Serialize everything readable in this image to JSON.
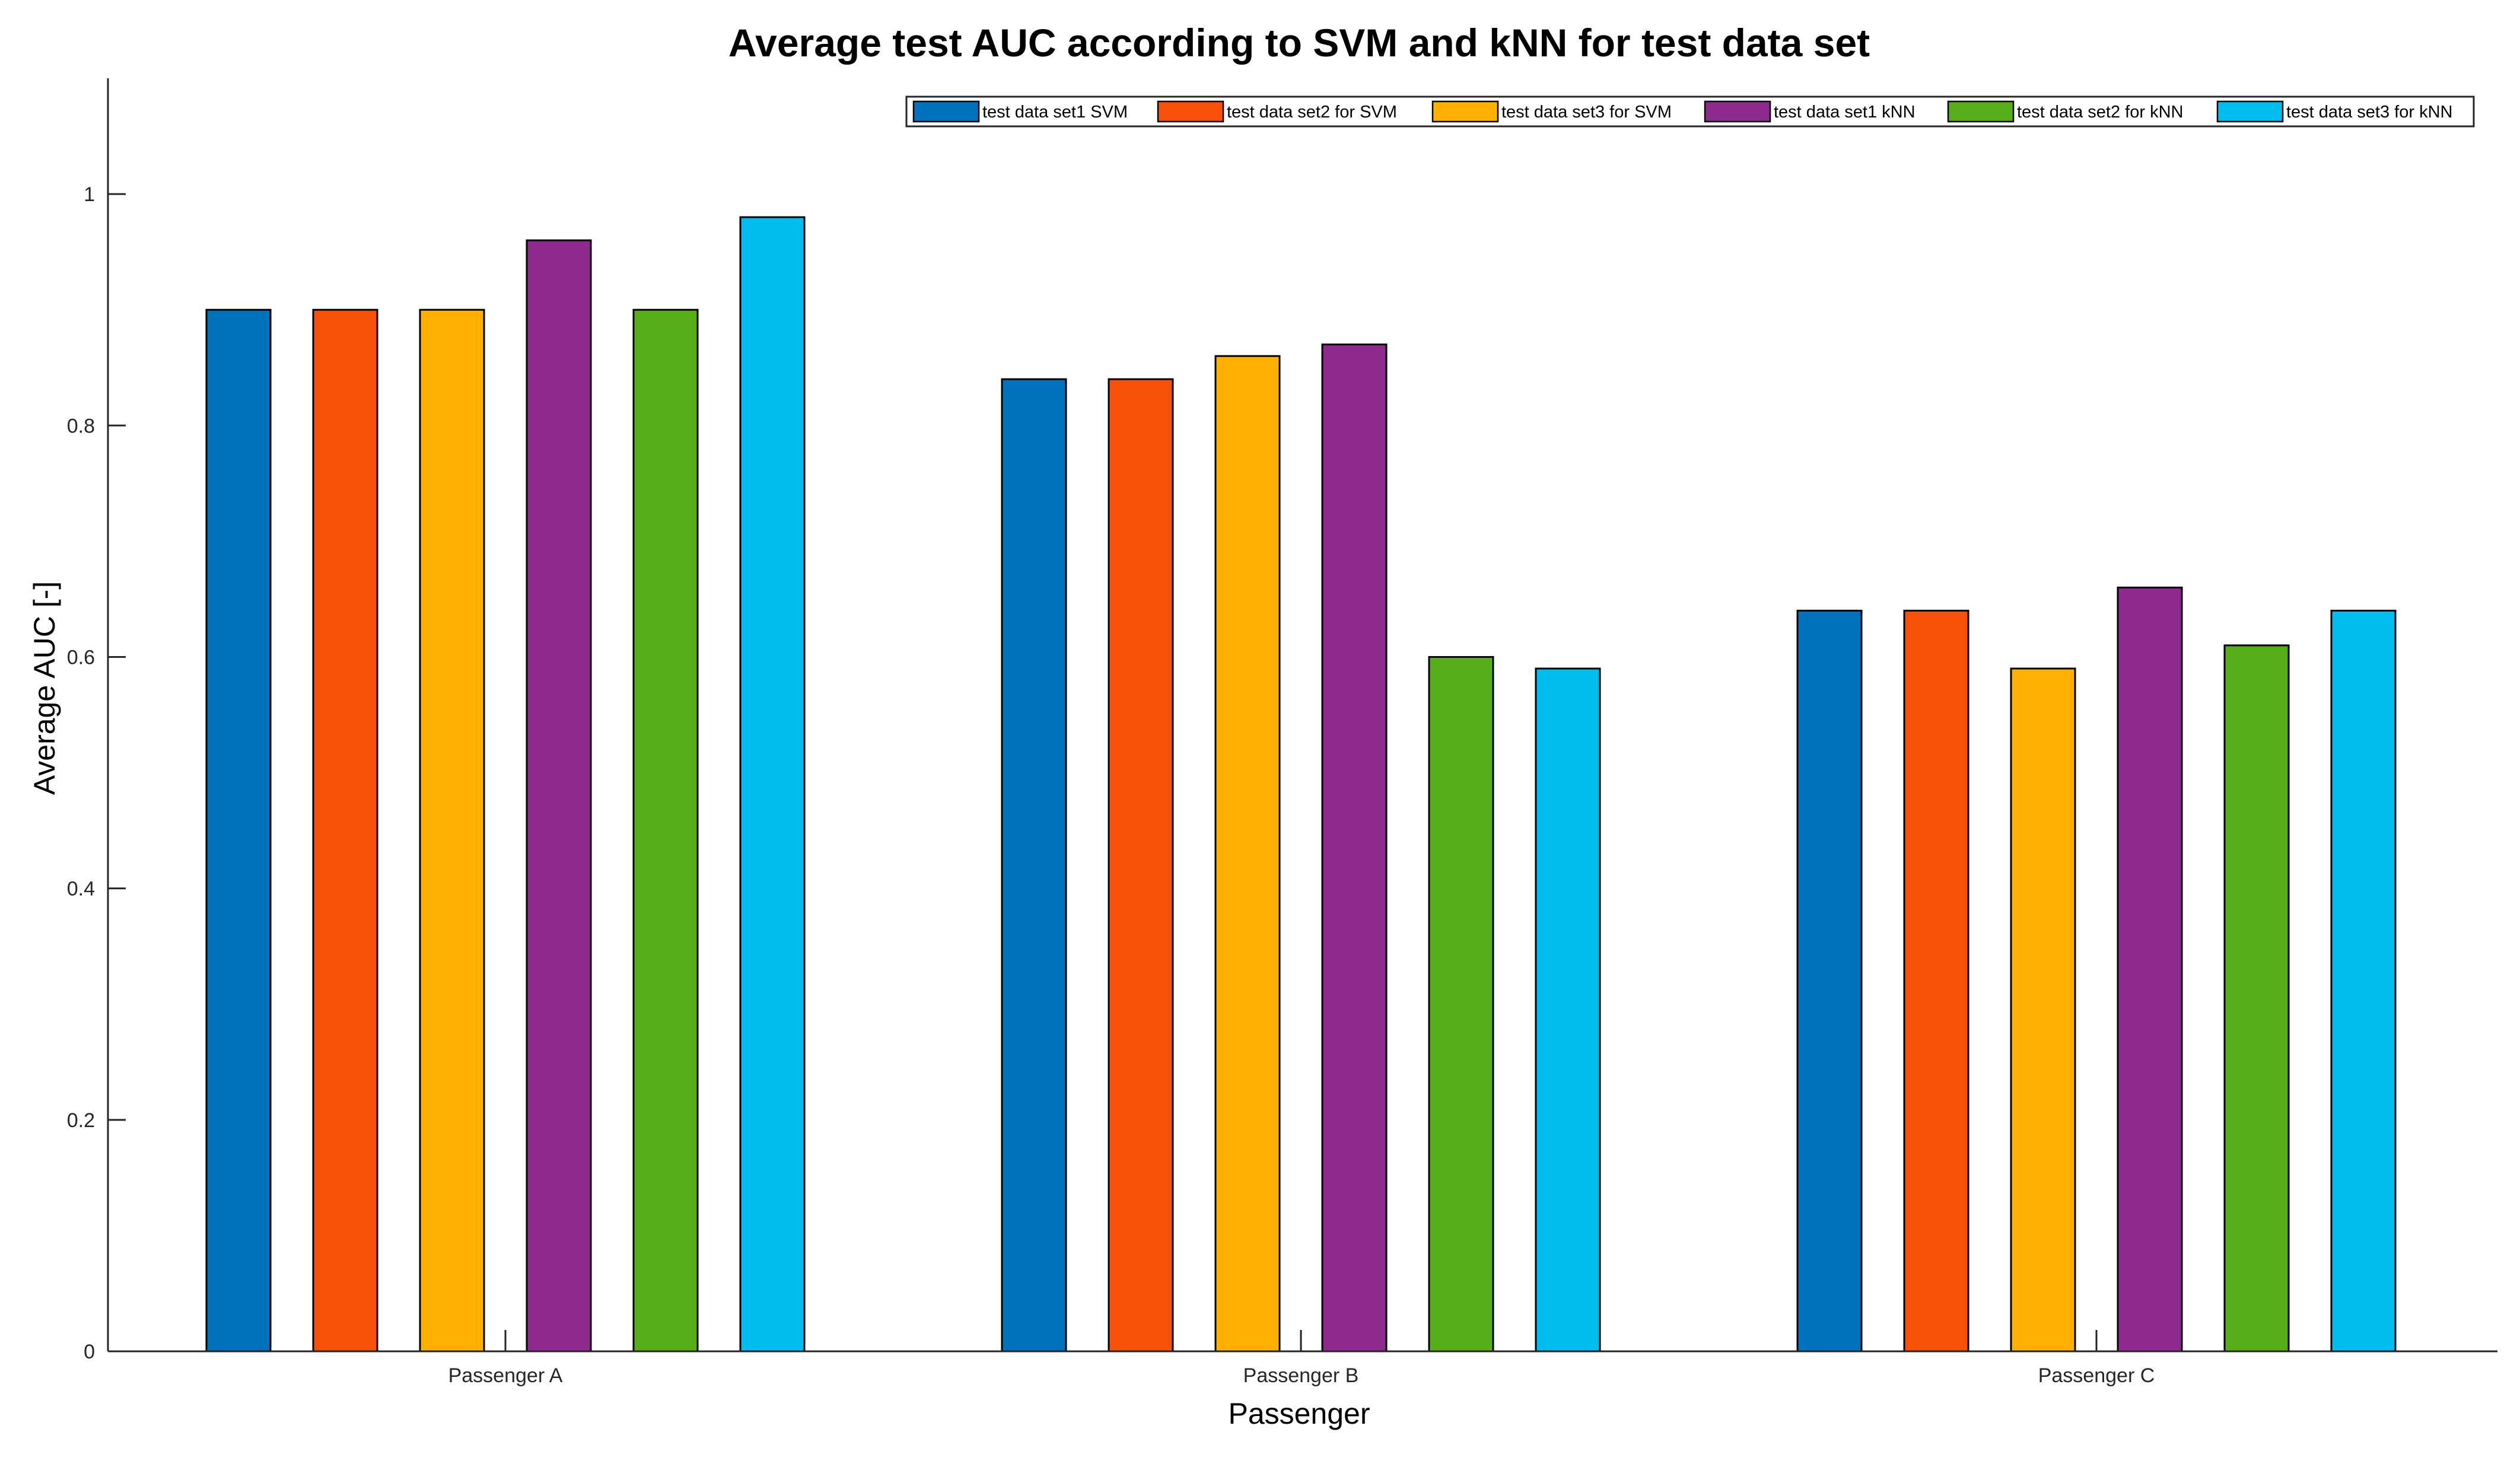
{
  "chart_data": {
    "type": "bar",
    "title": "Average test AUC according to SVM and kNN for test data set",
    "xlabel": "Passenger",
    "ylabel": "Average AUC [-]",
    "categories": [
      "Passenger A",
      "Passenger B",
      "Passenger C"
    ],
    "ylim": [
      0,
      1.1
    ],
    "yticks": [
      0,
      0.2,
      0.4,
      0.6,
      0.8,
      1
    ],
    "ytick_labels": [
      "0",
      "0.2",
      "0.4",
      "0.6",
      "0.8",
      "1"
    ],
    "legend_position": "top-right",
    "grid": false,
    "series": [
      {
        "name": "test data set1 SVM",
        "color": "#0072BD",
        "values": [
          0.9,
          0.84,
          0.64
        ]
      },
      {
        "name": "test data set2 for SVM",
        "color": "#F75008",
        "values": [
          0.9,
          0.84,
          0.64
        ]
      },
      {
        "name": "test data set3 for SVM",
        "color": "#FFB000",
        "values": [
          0.9,
          0.86,
          0.59
        ]
      },
      {
        "name": "test data set1 kNN",
        "color": "#8E2A8E",
        "values": [
          0.96,
          0.87,
          0.66
        ]
      },
      {
        "name": "test data set2 for kNN",
        "color": "#58AE1A",
        "values": [
          0.9,
          0.6,
          0.61
        ]
      },
      {
        "name": "test data set3 for kNN",
        "color": "#00BDEF",
        "values": [
          0.98,
          0.59,
          0.64
        ]
      }
    ]
  }
}
